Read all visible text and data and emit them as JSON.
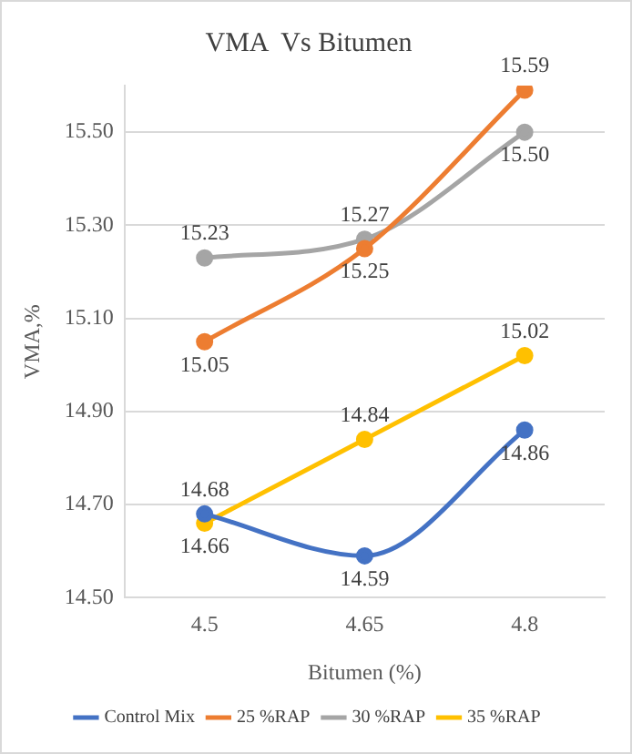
{
  "chart_data": {
    "type": "line",
    "title": "VMA  Vs Bitumen",
    "xlabel": "Bitumen (%)",
    "ylabel": "VMA,%",
    "categories": [
      "4.5",
      "4.65",
      "4.8"
    ],
    "series": [
      {
        "name": "Control Mix",
        "color": "#4472c4",
        "values": [
          14.68,
          14.59,
          14.86
        ],
        "value_labels": [
          "14.68",
          "14.59",
          "14.86"
        ]
      },
      {
        "name": "25 %RAP",
        "color": "#ed7d31",
        "values": [
          15.05,
          15.25,
          15.59
        ],
        "value_labels": [
          "15.05",
          "15.25",
          "15.59"
        ]
      },
      {
        "name": "30 %RAP",
        "color": "#a5a5a5",
        "values": [
          15.23,
          15.27,
          15.5
        ],
        "value_labels": [
          "15.23",
          "15.27",
          "15.50"
        ]
      },
      {
        "name": "35 %RAP",
        "color": "#ffc000",
        "values": [
          14.66,
          14.84,
          15.02
        ],
        "value_labels": [
          "14.66",
          "14.84",
          "15.02"
        ]
      }
    ],
    "ylim": [
      14.5,
      15.6
    ],
    "yticks": [
      {
        "value": 14.5,
        "label": "14.50"
      },
      {
        "value": 14.7,
        "label": "14.70"
      },
      {
        "value": 14.9,
        "label": "14.90"
      },
      {
        "value": 15.1,
        "label": "15.10"
      },
      {
        "value": 15.3,
        "label": "15.30"
      },
      {
        "value": 15.5,
        "label": "15.50"
      }
    ],
    "grid": "y",
    "legend": "bottom",
    "marker": "circle",
    "line_style": "solid"
  }
}
